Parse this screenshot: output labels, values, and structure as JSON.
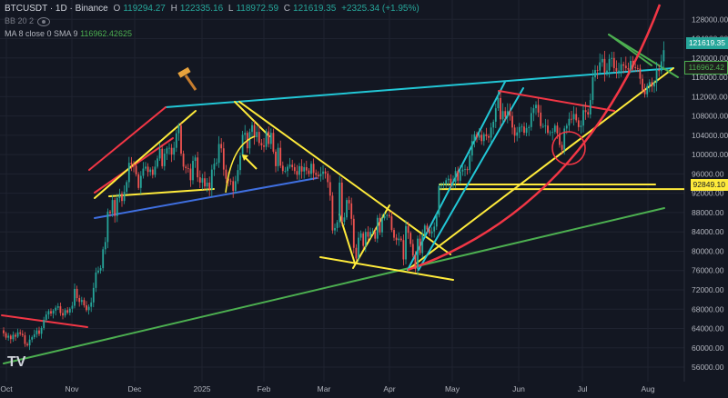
{
  "header": {
    "symbol": "BTCUSDT · 1D · Binance",
    "o_label": "O",
    "o": "119294.27",
    "h_label": "H",
    "h": "122335.16",
    "l_label": "L",
    "l": "118972.59",
    "c_label": "C",
    "c": "121619.35",
    "change": "+2325.34 (+1.95%)",
    "bb": "BB 20 2",
    "ma_label": "MA 8 close 0 SMA 9",
    "ma_value": "116962.42625"
  },
  "price_labels": {
    "last": "121619.35",
    "ma": "116962.42",
    "level": "92849.10"
  },
  "colors": {
    "bg": "#131722",
    "up": "#26a69a",
    "down": "#ef5350",
    "yellow": "#ffeb3b",
    "red": "#f23645",
    "cyan": "#22c7d6",
    "blue": "#3f6fe0",
    "green": "#4caf50"
  },
  "logo_text": "TV",
  "chart_data": {
    "type": "candlestick",
    "y_ticks": [
      56000,
      60000,
      64000,
      68000,
      72000,
      76000,
      80000,
      84000,
      88000,
      92000,
      96000,
      100000,
      104000,
      108000,
      112000,
      116000,
      120000,
      124000,
      128000
    ],
    "ylim": [
      53000,
      132000
    ],
    "x_ticks": [
      "Oct",
      "Nov",
      "Dec",
      "2025",
      "Feb",
      "Mar",
      "Apr",
      "May",
      "Jun",
      "Jul",
      "Aug"
    ],
    "level_line": 92849.1,
    "ma_value": 116962.42,
    "close": [
      63000,
      62100,
      62500,
      61800,
      62700,
      62300,
      63200,
      62900,
      62600,
      60800,
      60500,
      61700,
      62200,
      62800,
      63600,
      62900,
      64100,
      65800,
      66900,
      67600,
      67100,
      67700,
      68300,
      68600,
      67200,
      66700,
      67800,
      67300,
      68100,
      68700,
      72200,
      70300,
      69500,
      69900,
      68800,
      67800,
      68500,
      69400,
      72400,
      75600,
      76000,
      76500,
      80400,
      81900,
      88200,
      87900,
      90600,
      87300,
      91000,
      91900,
      90400,
      92300,
      94300,
      98300,
      98000,
      97700,
      95900,
      93100,
      95600,
      97100,
      97500,
      96400,
      96900,
      95800,
      97500,
      99200,
      101200,
      97600,
      100200,
      101300,
      101400,
      100000,
      101400,
      104400,
      106000,
      100200,
      97500,
      97200,
      97100,
      94700,
      98700,
      99400,
      95300,
      94200,
      95100,
      93400,
      94200,
      92800,
      96900,
      98100,
      98300,
      102200,
      101300,
      96900,
      95000,
      94600,
      94500,
      92500,
      94500,
      96800,
      99800,
      104100,
      104500,
      101300,
      104700,
      106100,
      103600,
      104700,
      102400,
      101900,
      101600,
      104800,
      102200,
      104500,
      100600,
      97600,
      101400,
      97700,
      96600,
      96600,
      97500,
      97900,
      97400,
      96600,
      95800,
      97600,
      96500,
      97400,
      96700,
      96000,
      98100,
      96200,
      95800,
      95500,
      96000,
      96500,
      96100,
      94300,
      91500,
      84300,
      84800,
      86000,
      94200,
      86100,
      87000,
      90600,
      89900,
      86700,
      80700,
      78500,
      82800,
      83700,
      81100,
      84000,
      83000,
      84000,
      84000,
      82600,
      86900,
      83900,
      86800,
      87300,
      87500,
      87200,
      84400,
      82800,
      82300,
      82600,
      82300,
      78300,
      85200,
      83800,
      81500,
      79100,
      76300,
      82600,
      79600,
      83500,
      85300,
      84500,
      83700,
      84100,
      85100,
      87500,
      93500,
      93700,
      93900,
      94700,
      95000,
      94100,
      94300,
      96600,
      94600,
      96500,
      96900,
      97000,
      96800,
      99800,
      102800,
      104200,
      103500,
      104100,
      102800,
      104200,
      103800,
      103500,
      105600,
      106800,
      109600,
      111700,
      107300,
      109000,
      107800,
      109000,
      108000,
      105600,
      103900,
      104600,
      105700,
      105800,
      104500,
      105500,
      105700,
      108600,
      109600,
      110300,
      108700,
      105900,
      105900,
      106000,
      104500,
      104600,
      104700,
      106000,
      104400,
      102000,
      101000,
      105400,
      106000,
      107400,
      107300,
      108400,
      107100,
      105700,
      106000,
      109200,
      108800,
      108300,
      111300,
      116000,
      117500,
      117400,
      119100,
      119800,
      117000,
      117400,
      119800,
      120000,
      117900,
      117300,
      117400,
      118700,
      118400,
      117900,
      117600,
      119400,
      118100,
      117900,
      117800,
      115700,
      113300,
      112500,
      114200,
      115000,
      114100,
      114900,
      117500,
      117300,
      119300,
      121619
    ]
  }
}
